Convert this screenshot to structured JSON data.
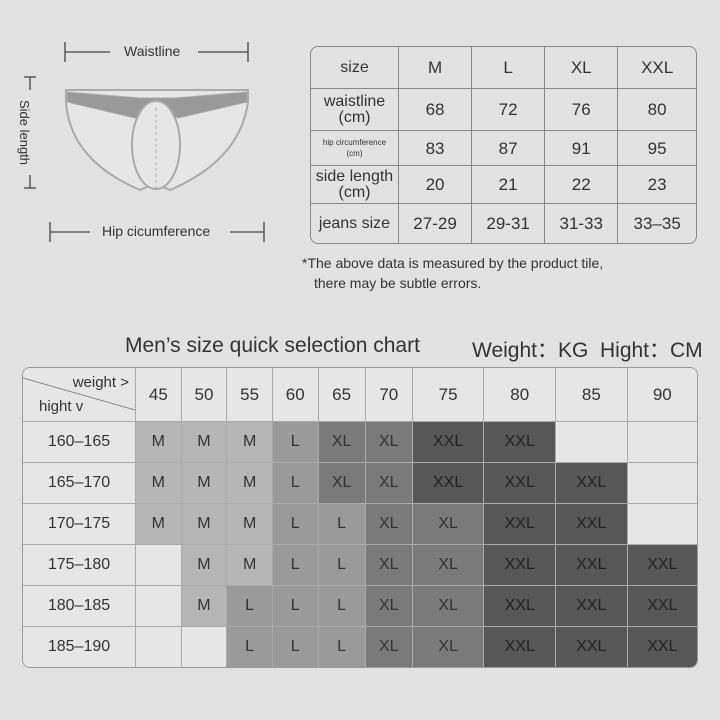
{
  "diagram": {
    "waistline_label": "Waistline",
    "side_length_label": "Side length",
    "hip_label": "Hip cicumference"
  },
  "spec_table": {
    "header": [
      "size",
      "M",
      "L",
      "XL",
      "XXL"
    ],
    "rows": [
      {
        "label": "waistline\n(cm)",
        "values": [
          "68",
          "72",
          "76",
          "80"
        ]
      },
      {
        "label": "hip circumference\n(cm)",
        "values": [
          "83",
          "87",
          "91",
          "95"
        ],
        "small": true
      },
      {
        "label": "side length\n(cm)",
        "values": [
          "20",
          "21",
          "22",
          "23"
        ]
      },
      {
        "label": "jeans size",
        "values": [
          "27-29",
          "29-31",
          "31-33",
          "33–35"
        ]
      }
    ]
  },
  "note": [
    "*The above data is measured by the product tile,",
    "there may be subtle errors."
  ],
  "quick_chart": {
    "title": "Men’s size quick selection chart",
    "units": "Weight：KG  Hight：CM",
    "corner_weight": "weight >",
    "corner_height": "hight v",
    "weights": [
      "45",
      "50",
      "55",
      "60",
      "65",
      "70",
      "75",
      "80",
      "85",
      "90"
    ],
    "rows": [
      {
        "height": "160–165",
        "sizes": [
          "M",
          "M",
          "M",
          "L",
          "XL",
          "XL",
          "XXL",
          "XXL",
          "",
          ""
        ]
      },
      {
        "height": "165–170",
        "sizes": [
          "M",
          "M",
          "M",
          "L",
          "XL",
          "XL",
          "XXL",
          "XXL",
          "XXL",
          ""
        ]
      },
      {
        "height": "170–175",
        "sizes": [
          "M",
          "M",
          "M",
          "L",
          "L",
          "XL",
          "XL",
          "XXL",
          "XXL",
          ""
        ]
      },
      {
        "height": "175–180",
        "sizes": [
          "",
          "M",
          "M",
          "L",
          "L",
          "XL",
          "XL",
          "XXL",
          "XXL",
          "XXL"
        ]
      },
      {
        "height": "180–185",
        "sizes": [
          "",
          "M",
          "L",
          "L",
          "L",
          "XL",
          "XL",
          "XXL",
          "XXL",
          "XXL"
        ]
      },
      {
        "height": "185–190",
        "sizes": [
          "",
          "",
          "L",
          "L",
          "L",
          "XL",
          "XL",
          "XXL",
          "XXL",
          "XXL"
        ]
      }
    ],
    "colors": {
      "M": "#b6b6b6",
      "L": "#9a9a9a",
      "XL": "#7a7a7a",
      "XXL": "#575757",
      "empty": "#e6e6e6",
      "header": "#e6e6e6"
    }
  }
}
